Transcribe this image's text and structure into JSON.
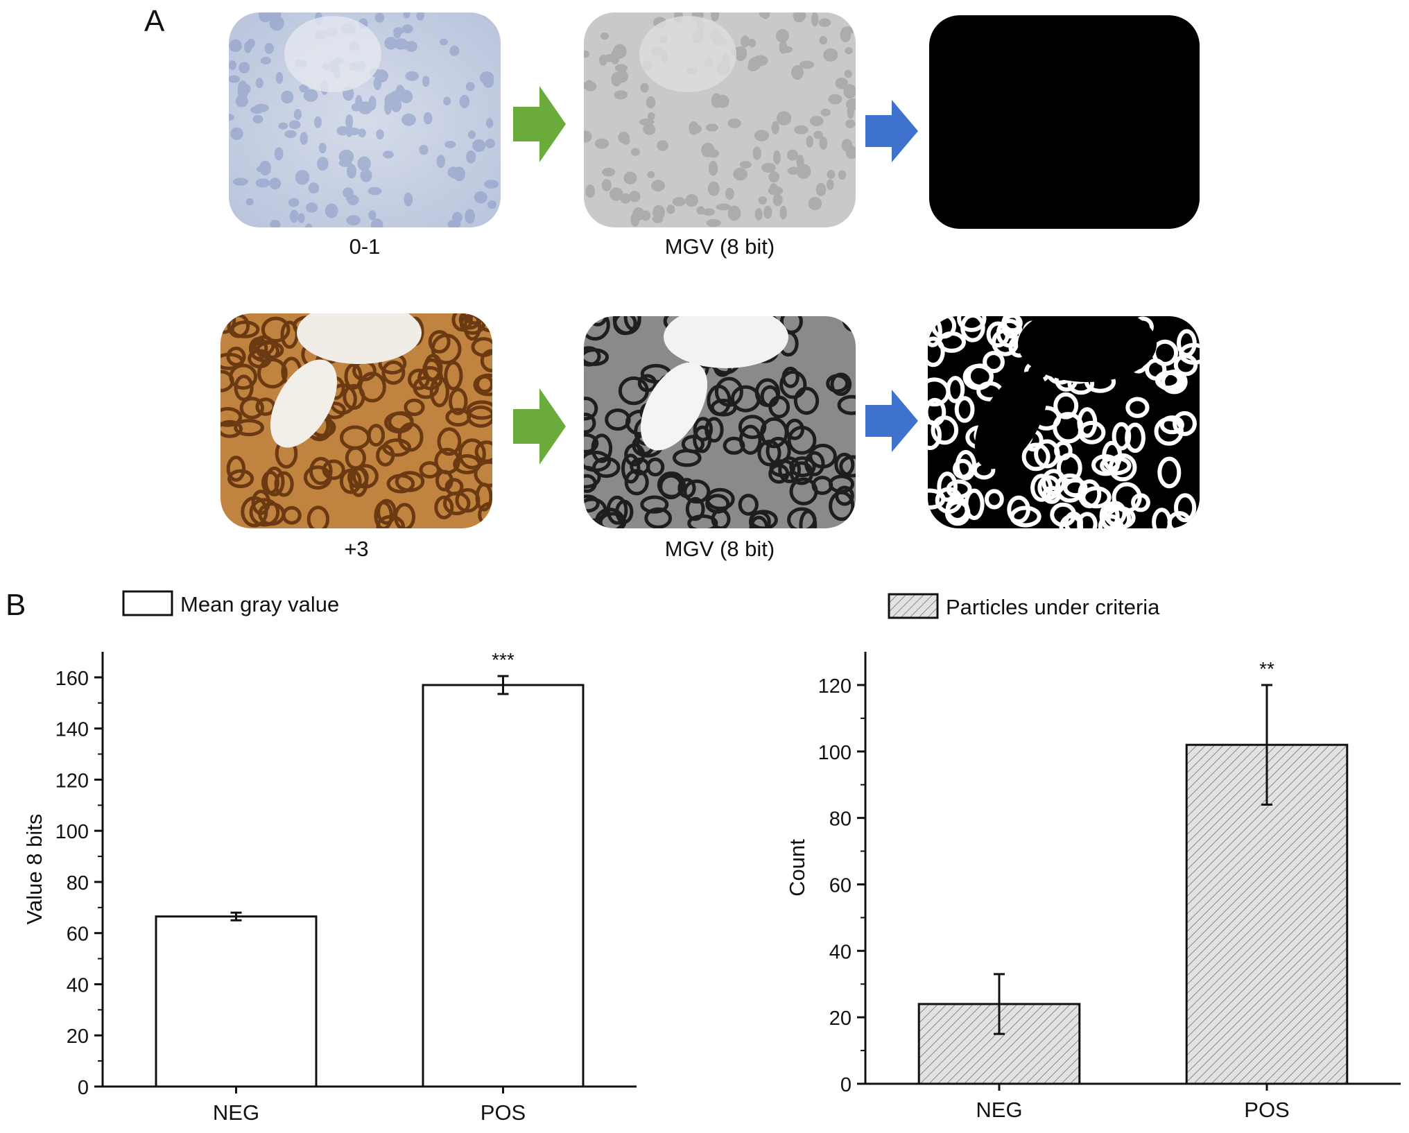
{
  "panel_a": {
    "letter": "A",
    "rows": [
      {
        "left_caption": "0-1",
        "middle_caption": "MGV (8 bit)"
      },
      {
        "left_caption": "+3",
        "middle_caption": "MGV (8 bit)"
      }
    ]
  },
  "panel_b": {
    "letter": "B"
  },
  "colors": {
    "green_arrow": "#6aab3c",
    "blue_arrow": "#3f72cc",
    "negative_stain": "#c3cde0",
    "positive_stain": "#b5742e"
  },
  "chart_data": [
    {
      "type": "bar",
      "legend": "Mean gray value",
      "legend_style": "open",
      "categories": [
        "NEG",
        "POS"
      ],
      "values": [
        66.5,
        157
      ],
      "errors": [
        1.5,
        3.5
      ],
      "significance": [
        "",
        "***"
      ],
      "ylabel": "Value 8 bits",
      "ylim": [
        0,
        170
      ],
      "yticks": [
        0,
        20,
        40,
        60,
        80,
        100,
        120,
        140,
        160
      ],
      "ytick_labels": [
        "0",
        "20",
        "40",
        "60",
        "80",
        "100",
        "120",
        "140",
        "160"
      ],
      "fill": "white",
      "grid": false,
      "legend_position": "top-left"
    },
    {
      "type": "bar",
      "legend": "Particles under criteria",
      "legend_style": "hatched",
      "categories": [
        "NEG",
        "POS"
      ],
      "values": [
        24,
        102
      ],
      "errors": [
        9,
        18
      ],
      "significance": [
        "",
        "**"
      ],
      "ylabel": "Count",
      "ylim": [
        0,
        130
      ],
      "yticks": [
        0,
        20,
        40,
        60,
        80,
        100,
        120
      ],
      "ytick_labels": [
        "0",
        "20",
        "40",
        "60",
        "80",
        "100",
        "120"
      ],
      "fill": "hatched",
      "grid": false,
      "legend_position": "top-left"
    }
  ]
}
